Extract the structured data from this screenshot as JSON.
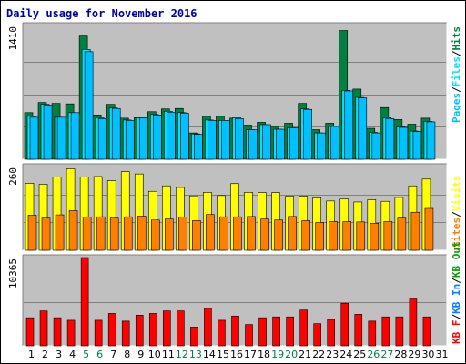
{
  "title": "Daily usage for November 2016",
  "colors": {
    "background": "#c0c0c0",
    "hits": "#008040",
    "files": "#00e0ff",
    "pages": "#00c0ff",
    "visits": "#ffff00",
    "sites": "#ff8000",
    "kb_in": "#0080ff",
    "kb_out": "#00a000",
    "kb_f": "#ff0000",
    "weekend_label": "#008040",
    "weekday_label": "#000000"
  },
  "chart_data": [
    {
      "type": "bar",
      "panel": "hits_files_pages",
      "categories": [
        "1",
        "2",
        "3",
        "4",
        "5",
        "6",
        "7",
        "8",
        "9",
        "10",
        "11",
        "12",
        "13",
        "14",
        "15",
        "16",
        "17",
        "18",
        "19",
        "20",
        "21",
        "22",
        "23",
        "24",
        "25",
        "26",
        "27",
        "28",
        "29",
        "30",
        "31"
      ],
      "series": [
        {
          "name": "Hits",
          "values": [
            505,
            615,
            605,
            600,
            1335,
            480,
            595,
            445,
            450,
            515,
            545,
            550,
            285,
            465,
            465,
            445,
            370,
            400,
            355,
            390,
            605,
            320,
            390,
            1395,
            760,
            335,
            560,
            430,
            380,
            445,
            0
          ]
        },
        {
          "name": "Files",
          "values": [
            465,
            595,
            455,
            505,
            1190,
            450,
            555,
            425,
            450,
            485,
            520,
            505,
            275,
            425,
            420,
            450,
            320,
            375,
            325,
            340,
            545,
            285,
            355,
            745,
            670,
            290,
            450,
            350,
            305,
            410,
            0
          ]
        },
        {
          "name": "Pages",
          "values": [
            455,
            585,
            455,
            505,
            1165,
            440,
            550,
            420,
            450,
            480,
            510,
            500,
            270,
            420,
            420,
            440,
            320,
            375,
            325,
            340,
            540,
            285,
            355,
            740,
            665,
            285,
            440,
            345,
            300,
            405,
            0
          ]
        }
      ],
      "ymax_label": "1410",
      "ymax": 1410,
      "right_labels": [
        "Pages",
        "Files",
        "Hits"
      ]
    },
    {
      "type": "bar",
      "panel": "visits_sites",
      "categories": [
        "1",
        "2",
        "3",
        "4",
        "5",
        "6",
        "7",
        "8",
        "9",
        "10",
        "11",
        "12",
        "13",
        "14",
        "15",
        "16",
        "17",
        "18",
        "19",
        "20",
        "21",
        "22",
        "23",
        "24",
        "25",
        "26",
        "27",
        "28",
        "29",
        "30",
        "31"
      ],
      "series": [
        {
          "name": "Visits",
          "values": [
            208,
            205,
            227,
            253,
            228,
            229,
            216,
            244,
            237,
            183,
            200,
            195,
            169,
            180,
            170,
            207,
            180,
            179,
            179,
            168,
            168,
            163,
            153,
            159,
            150,
            157,
            152,
            164,
            200,
            221,
            0
          ]
        },
        {
          "name": "Sites",
          "values": [
            109,
            100,
            110,
            123,
            103,
            104,
            100,
            104,
            106,
            94,
            97,
            103,
            92,
            111,
            104,
            104,
            105,
            97,
            94,
            105,
            92,
            86,
            89,
            89,
            88,
            84,
            89,
            100,
            118,
            130,
            0
          ]
        }
      ],
      "ymax_label": "260",
      "ymax": 260,
      "right_labels": [
        "Sites",
        "Visits"
      ]
    },
    {
      "type": "bar",
      "panel": "kbytes",
      "categories": [
        "1",
        "2",
        "3",
        "4",
        "5",
        "6",
        "7",
        "8",
        "9",
        "10",
        "11",
        "12",
        "13",
        "14",
        "15",
        "16",
        "17",
        "18",
        "19",
        "20",
        "21",
        "22",
        "23",
        "24",
        "25",
        "26",
        "27",
        "28",
        "29",
        "30",
        "31"
      ],
      "series": [
        {
          "name": "KB F",
          "values": [
            3300,
            4100,
            3300,
            3000,
            10365,
            3000,
            3800,
            2900,
            3600,
            3800,
            4100,
            4100,
            2200,
            4400,
            3000,
            3500,
            2500,
            3300,
            3400,
            3400,
            4200,
            2600,
            3100,
            5000,
            3700,
            2900,
            3400,
            3400,
            5500,
            3400,
            0
          ]
        }
      ],
      "ymax_label": "10365",
      "ymax": 10365,
      "right_labels": [
        "KB F",
        "KB In",
        "KB Out"
      ]
    }
  ],
  "x_labels": [
    "1",
    "2",
    "3",
    "4",
    "5",
    "6",
    "7",
    "8",
    "9",
    "10",
    "11",
    "12",
    "13",
    "14",
    "15",
    "16",
    "17",
    "18",
    "19",
    "20",
    "21",
    "22",
    "23",
    "24",
    "25",
    "26",
    "27",
    "28",
    "29",
    "30",
    "31"
  ],
  "weekend_days": [
    5,
    6,
    12,
    13,
    19,
    20,
    26,
    27
  ],
  "right_separator": "/"
}
